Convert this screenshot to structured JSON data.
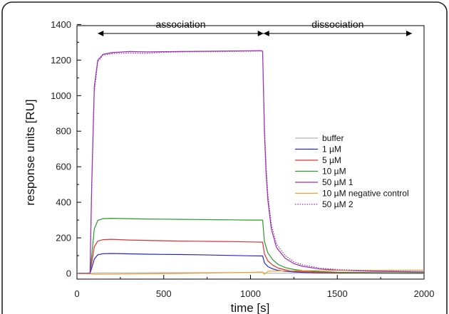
{
  "chart_data": {
    "type": "line",
    "xlabel": "time [s]",
    "ylabel": "response units [RU]",
    "xlim": [
      0,
      2000
    ],
    "ylim": [
      -20,
      1400
    ],
    "xticks": [
      0,
      500,
      1000,
      1500,
      2000
    ],
    "yticks": [
      0,
      200,
      400,
      600,
      800,
      1000,
      1200,
      1400
    ],
    "grid": false,
    "legend_position": "right",
    "annotations": [
      {
        "text": "association",
        "x_start": 120,
        "x_end": 1075,
        "y": 1350
      },
      {
        "text": "dissociation",
        "x_start": 1075,
        "x_end": 1930,
        "y": 1350
      }
    ],
    "series": [
      {
        "name": "buffer",
        "color": "#b4b4b4",
        "style": "solid",
        "x": [
          0,
          80,
          100,
          200,
          500,
          800,
          1000,
          1070,
          1080,
          1100,
          1200,
          1500,
          2000
        ],
        "y": [
          0,
          0,
          2,
          3,
          4,
          5,
          5,
          5,
          2,
          1,
          1,
          0,
          0
        ]
      },
      {
        "name": "1 µM",
        "color": "#2424d8",
        "style": "solid",
        "x": [
          0,
          75,
          85,
          100,
          120,
          150,
          200,
          300,
          400,
          500,
          600,
          700,
          800,
          900,
          1000,
          1070,
          1080,
          1100,
          1130,
          1160,
          1200,
          1250,
          1300,
          1400,
          1500,
          1700,
          2000
        ],
        "y": [
          0,
          0,
          30,
          80,
          105,
          111,
          112,
          110,
          108,
          107,
          106,
          105,
          103,
          101,
          99,
          98,
          60,
          38,
          25,
          17,
          12,
          8,
          6,
          4,
          3,
          2,
          1
        ]
      },
      {
        "name": "5 µM",
        "color": "#e03030",
        "style": "solid",
        "x": [
          0,
          75,
          85,
          100,
          120,
          150,
          200,
          300,
          400,
          500,
          600,
          700,
          800,
          900,
          1000,
          1070,
          1080,
          1100,
          1130,
          1160,
          1200,
          1250,
          1300,
          1400,
          1500,
          1700,
          2000
        ],
        "y": [
          0,
          0,
          60,
          150,
          182,
          190,
          192,
          188,
          186,
          184,
          182,
          181,
          180,
          179,
          177,
          176,
          110,
          70,
          45,
          30,
          20,
          13,
          10,
          6,
          4,
          3,
          2
        ]
      },
      {
        "name": "10 µM",
        "color": "#2a9a2a",
        "style": "solid",
        "x": [
          0,
          75,
          85,
          100,
          120,
          150,
          200,
          300,
          400,
          500,
          600,
          700,
          800,
          900,
          1000,
          1070,
          1080,
          1100,
          1130,
          1160,
          1200,
          1250,
          1300,
          1400,
          1500,
          1700,
          2000
        ],
        "y": [
          0,
          0,
          100,
          250,
          298,
          308,
          310,
          308,
          306,
          305,
          304,
          303,
          302,
          301,
          300,
          300,
          180,
          115,
          75,
          50,
          33,
          22,
          16,
          10,
          7,
          5,
          3
        ]
      },
      {
        "name": "50 µM 1",
        "color": "#9a30b0",
        "style": "solid",
        "x": [
          0,
          75,
          85,
          100,
          120,
          150,
          200,
          300,
          400,
          500,
          600,
          700,
          800,
          900,
          1000,
          1060,
          1070,
          1080,
          1090,
          1100,
          1120,
          1150,
          1200,
          1250,
          1300,
          1400,
          1500,
          1700,
          2000
        ],
        "y": [
          0,
          0,
          500,
          1050,
          1200,
          1232,
          1242,
          1248,
          1246,
          1247,
          1248,
          1249,
          1250,
          1251,
          1252,
          1253,
          1250,
          800,
          560,
          410,
          250,
          145,
          85,
          55,
          40,
          25,
          18,
          12,
          8
        ]
      },
      {
        "name": "10 µM negative control",
        "color": "#f0a030",
        "style": "solid",
        "x": [
          0,
          80,
          100,
          200,
          400,
          600,
          800,
          1000,
          1070,
          1080,
          1100,
          1200,
          1500,
          2000
        ],
        "y": [
          0,
          -3,
          -5,
          -4,
          -2,
          0,
          3,
          6,
          8,
          -5,
          12,
          15,
          17,
          18
        ]
      },
      {
        "name": "50 µM 2",
        "color": "#9a30b0",
        "style": "dotted",
        "x": [
          0,
          75,
          85,
          100,
          120,
          150,
          200,
          300,
          400,
          500,
          600,
          700,
          800,
          900,
          1000,
          1060,
          1070,
          1080,
          1090,
          1100,
          1120,
          1150,
          1200,
          1250,
          1300,
          1400,
          1500,
          1700,
          2000
        ],
        "y": [
          0,
          0,
          480,
          1020,
          1190,
          1228,
          1236,
          1240,
          1238,
          1244,
          1246,
          1247,
          1248,
          1249,
          1250,
          1251,
          1248,
          830,
          600,
          440,
          275,
          165,
          100,
          65,
          48,
          30,
          22,
          14,
          10
        ]
      }
    ]
  }
}
